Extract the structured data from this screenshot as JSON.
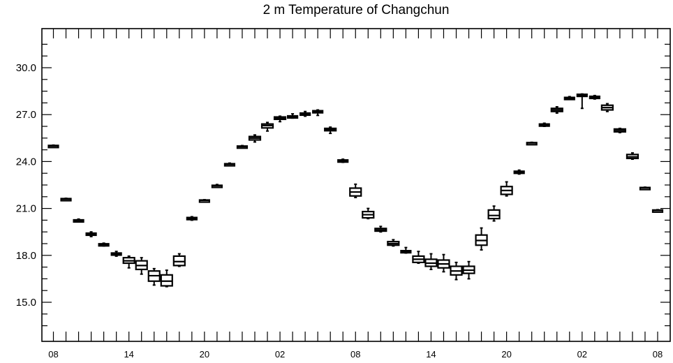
{
  "chart_data": {
    "type": "box",
    "title": "2 m Temperature of Changchun",
    "xlabel": "",
    "ylabel": "",
    "ylim": [
      12.5,
      32.5
    ],
    "yticks": [
      15.0,
      18.0,
      21.0,
      24.0,
      27.0,
      30.0
    ],
    "ytick_labels": [
      "15.0",
      "18.0",
      "21.0",
      "24.0",
      "27.0",
      "30.0"
    ],
    "x_count": 50,
    "xtick_labels": [
      {
        "index": 0,
        "label": "08"
      },
      {
        "index": 6,
        "label": "14"
      },
      {
        "index": 12,
        "label": "20"
      },
      {
        "index": 18,
        "label": "02"
      },
      {
        "index": 24,
        "label": "08"
      },
      {
        "index": 30,
        "label": "14"
      },
      {
        "index": 36,
        "label": "20"
      },
      {
        "index": 42,
        "label": "02"
      },
      {
        "index": 48,
        "label": "08"
      }
    ],
    "boxes": [
      {
        "x": 0,
        "min": 24.95,
        "q1": 24.98,
        "median": 25.0,
        "q3": 25.03,
        "max": 25.05
      },
      {
        "x": 1,
        "min": 21.55,
        "q1": 21.58,
        "median": 21.6,
        "q3": 21.63,
        "max": 21.65
      },
      {
        "x": 2,
        "min": 20.15,
        "q1": 20.2,
        "median": 20.23,
        "q3": 20.27,
        "max": 20.32
      },
      {
        "x": 3,
        "min": 19.2,
        "q1": 19.3,
        "median": 19.35,
        "q3": 19.42,
        "max": 19.5
      },
      {
        "x": 4,
        "min": 18.6,
        "q1": 18.65,
        "median": 18.7,
        "q3": 18.74,
        "max": 18.78
      },
      {
        "x": 5,
        "min": 17.95,
        "q1": 18.05,
        "median": 18.1,
        "q3": 18.15,
        "max": 18.25
      },
      {
        "x": 6,
        "min": 17.2,
        "q1": 17.5,
        "median": 17.65,
        "q3": 17.85,
        "max": 17.95
      },
      {
        "x": 7,
        "min": 16.8,
        "q1": 17.1,
        "median": 17.35,
        "q3": 17.65,
        "max": 17.85
      },
      {
        "x": 8,
        "min": 16.1,
        "q1": 16.35,
        "median": 16.7,
        "q3": 17.0,
        "max": 17.15
      },
      {
        "x": 9,
        "min": 16.0,
        "q1": 16.05,
        "median": 16.35,
        "q3": 16.75,
        "max": 17.05
      },
      {
        "x": 10,
        "min": 17.3,
        "q1": 17.35,
        "median": 17.6,
        "q3": 17.95,
        "max": 18.1
      },
      {
        "x": 11,
        "min": 20.25,
        "q1": 20.3,
        "median": 20.35,
        "q3": 20.42,
        "max": 20.47
      },
      {
        "x": 12,
        "min": 21.48,
        "q1": 21.5,
        "median": 21.52,
        "q3": 21.54,
        "max": 21.56
      },
      {
        "x": 13,
        "min": 22.37,
        "q1": 22.42,
        "median": 22.45,
        "q3": 22.48,
        "max": 22.53
      },
      {
        "x": 14,
        "min": 23.77,
        "q1": 23.8,
        "median": 23.83,
        "q3": 23.86,
        "max": 23.9
      },
      {
        "x": 15,
        "min": 24.9,
        "q1": 24.93,
        "median": 24.96,
        "q3": 24.99,
        "max": 25.02
      },
      {
        "x": 16,
        "min": 25.25,
        "q1": 25.38,
        "median": 25.5,
        "q3": 25.6,
        "max": 25.7
      },
      {
        "x": 17,
        "min": 25.95,
        "q1": 26.15,
        "median": 26.3,
        "q3": 26.4,
        "max": 26.5
      },
      {
        "x": 18,
        "min": 26.55,
        "q1": 26.7,
        "median": 26.78,
        "q3": 26.85,
        "max": 26.9
      },
      {
        "x": 19,
        "min": 26.78,
        "q1": 26.83,
        "median": 26.87,
        "q3": 26.92,
        "max": 27.05
      },
      {
        "x": 20,
        "min": 26.9,
        "q1": 26.98,
        "median": 27.03,
        "q3": 27.1,
        "max": 27.2
      },
      {
        "x": 21,
        "min": 26.95,
        "q1": 27.15,
        "median": 27.2,
        "q3": 27.25,
        "max": 27.3
      },
      {
        "x": 22,
        "min": 25.8,
        "q1": 25.97,
        "median": 26.05,
        "q3": 26.12,
        "max": 26.2
      },
      {
        "x": 23,
        "min": 23.95,
        "q1": 23.98,
        "median": 24.02,
        "q3": 24.1,
        "max": 24.15
      },
      {
        "x": 24,
        "min": 21.7,
        "q1": 21.8,
        "median": 22.05,
        "q3": 22.3,
        "max": 22.55
      },
      {
        "x": 25,
        "min": 20.35,
        "q1": 20.4,
        "median": 20.6,
        "q3": 20.8,
        "max": 21.0
      },
      {
        "x": 26,
        "min": 19.5,
        "q1": 19.55,
        "median": 19.62,
        "q3": 19.72,
        "max": 19.85
      },
      {
        "x": 27,
        "min": 18.6,
        "q1": 18.65,
        "median": 18.75,
        "q3": 18.88,
        "max": 19.0
      },
      {
        "x": 28,
        "min": 18.15,
        "q1": 18.2,
        "median": 18.25,
        "q3": 18.3,
        "max": 18.5
      },
      {
        "x": 29,
        "min": 17.5,
        "q1": 17.55,
        "median": 17.75,
        "q3": 17.95,
        "max": 18.25
      },
      {
        "x": 30,
        "min": 17.1,
        "q1": 17.3,
        "median": 17.5,
        "q3": 17.75,
        "max": 18.1
      },
      {
        "x": 31,
        "min": 16.95,
        "q1": 17.2,
        "median": 17.45,
        "q3": 17.7,
        "max": 18.05
      },
      {
        "x": 32,
        "min": 16.45,
        "q1": 16.75,
        "median": 17.0,
        "q3": 17.3,
        "max": 17.55
      },
      {
        "x": 33,
        "min": 16.5,
        "q1": 16.85,
        "median": 17.05,
        "q3": 17.3,
        "max": 17.6
      },
      {
        "x": 34,
        "min": 18.35,
        "q1": 18.65,
        "median": 18.95,
        "q3": 19.3,
        "max": 19.75
      },
      {
        "x": 35,
        "min": 20.2,
        "q1": 20.35,
        "median": 20.55,
        "q3": 20.9,
        "max": 21.15
      },
      {
        "x": 36,
        "min": 21.8,
        "q1": 21.9,
        "median": 22.15,
        "q3": 22.4,
        "max": 22.7
      },
      {
        "x": 37,
        "min": 23.2,
        "q1": 23.25,
        "median": 23.3,
        "q3": 23.38,
        "max": 23.45
      },
      {
        "x": 38,
        "min": 25.15,
        "q1": 25.17,
        "median": 25.19,
        "q3": 25.21,
        "max": 25.23
      },
      {
        "x": 39,
        "min": 26.25,
        "q1": 26.3,
        "median": 26.35,
        "q3": 26.4,
        "max": 26.45
      },
      {
        "x": 40,
        "min": 27.1,
        "q1": 27.2,
        "median": 27.3,
        "q3": 27.4,
        "max": 27.5
      },
      {
        "x": 41,
        "min": 28.0,
        "q1": 28.02,
        "median": 28.06,
        "q3": 28.1,
        "max": 28.15
      },
      {
        "x": 42,
        "min": 27.4,
        "q1": 28.2,
        "median": 28.25,
        "q3": 28.3,
        "max": 28.32
      },
      {
        "x": 43,
        "min": 28.0,
        "q1": 28.08,
        "median": 28.12,
        "q3": 28.17,
        "max": 28.22
      },
      {
        "x": 44,
        "min": 27.2,
        "q1": 27.3,
        "median": 27.45,
        "q3": 27.6,
        "max": 27.7
      },
      {
        "x": 45,
        "min": 25.85,
        "q1": 25.9,
        "median": 26.0,
        "q3": 26.08,
        "max": 26.12
      },
      {
        "x": 46,
        "min": 24.15,
        "q1": 24.2,
        "median": 24.3,
        "q3": 24.45,
        "max": 24.55
      },
      {
        "x": 47,
        "min": 22.28,
        "q1": 22.3,
        "median": 22.32,
        "q3": 22.34,
        "max": 22.36
      },
      {
        "x": 48,
        "min": 20.85,
        "q1": 20.87,
        "median": 20.88,
        "q3": 20.9,
        "max": 20.92
      }
    ],
    "grid": false,
    "legend": "none"
  }
}
